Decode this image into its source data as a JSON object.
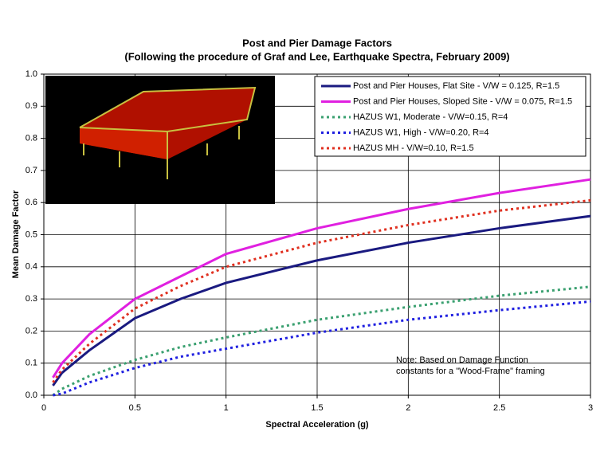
{
  "chart_data": {
    "type": "line",
    "title": "Post and Pier Damage Factors",
    "subtitle": "(Following the procedure of Graf and Lee, Earthquake Spectra, February 2009)",
    "x_label": "Spectral Acceleration (g)",
    "y_label": "Mean Damage Factor",
    "annotation": [
      "Note: Based on Damage Function",
      "constants for a \"Wood-Frame\" framing"
    ],
    "x": [
      0.05,
      0.1,
      0.25,
      0.5,
      0.75,
      1,
      1.5,
      2,
      2.5,
      3
    ],
    "series": [
      {
        "name": "Post and Pier Houses, Flat Site - V/W = 0.125, R=1.5",
        "color": "#1a1a80",
        "style": "solid",
        "values": [
          0.03,
          0.07,
          0.14,
          0.24,
          0.3,
          0.35,
          0.42,
          0.475,
          0.52,
          0.558
        ]
      },
      {
        "name": "Post and Pier Houses, Sloped Site - V/W = 0.075, R=1.5",
        "color": "#e020e0",
        "style": "solid",
        "values": [
          0.055,
          0.1,
          0.19,
          0.3,
          0.37,
          0.44,
          0.52,
          0.58,
          0.63,
          0.672
        ]
      },
      {
        "name": "HAZUS W1, Moderate - V/W=0.15, R=4",
        "color": "#3aa070",
        "style": "dotted",
        "values": [
          0.0,
          0.02,
          0.06,
          0.11,
          0.15,
          0.18,
          0.235,
          0.275,
          0.31,
          0.338
        ]
      },
      {
        "name": "HAZUS W1, High - V/W=0.20, R=4",
        "color": "#2020e0",
        "style": "dotted",
        "values": [
          0.0,
          0.005,
          0.04,
          0.085,
          0.12,
          0.145,
          0.195,
          0.235,
          0.265,
          0.292
        ]
      },
      {
        "name": "HAZUS MH - V/W=0.10, R=1.5",
        "color": "#e03020",
        "style": "dotted",
        "values": [
          0.04,
          0.08,
          0.16,
          0.27,
          0.34,
          0.4,
          0.475,
          0.53,
          0.575,
          0.607
        ]
      }
    ],
    "xlim": [
      0,
      3
    ],
    "ylim": [
      0,
      1
    ],
    "xticks": [
      0,
      0.5,
      1,
      1.5,
      2,
      2.5,
      3
    ],
    "yticks": [
      {
        "value": 0,
        "label": "0.0"
      },
      0.1,
      0.2,
      0.3,
      0.4,
      0.5,
      0.6,
      0.7,
      0.8,
      0.9,
      {
        "value": 1,
        "label": "1.0"
      }
    ],
    "grid": true,
    "legend": "top-right"
  }
}
